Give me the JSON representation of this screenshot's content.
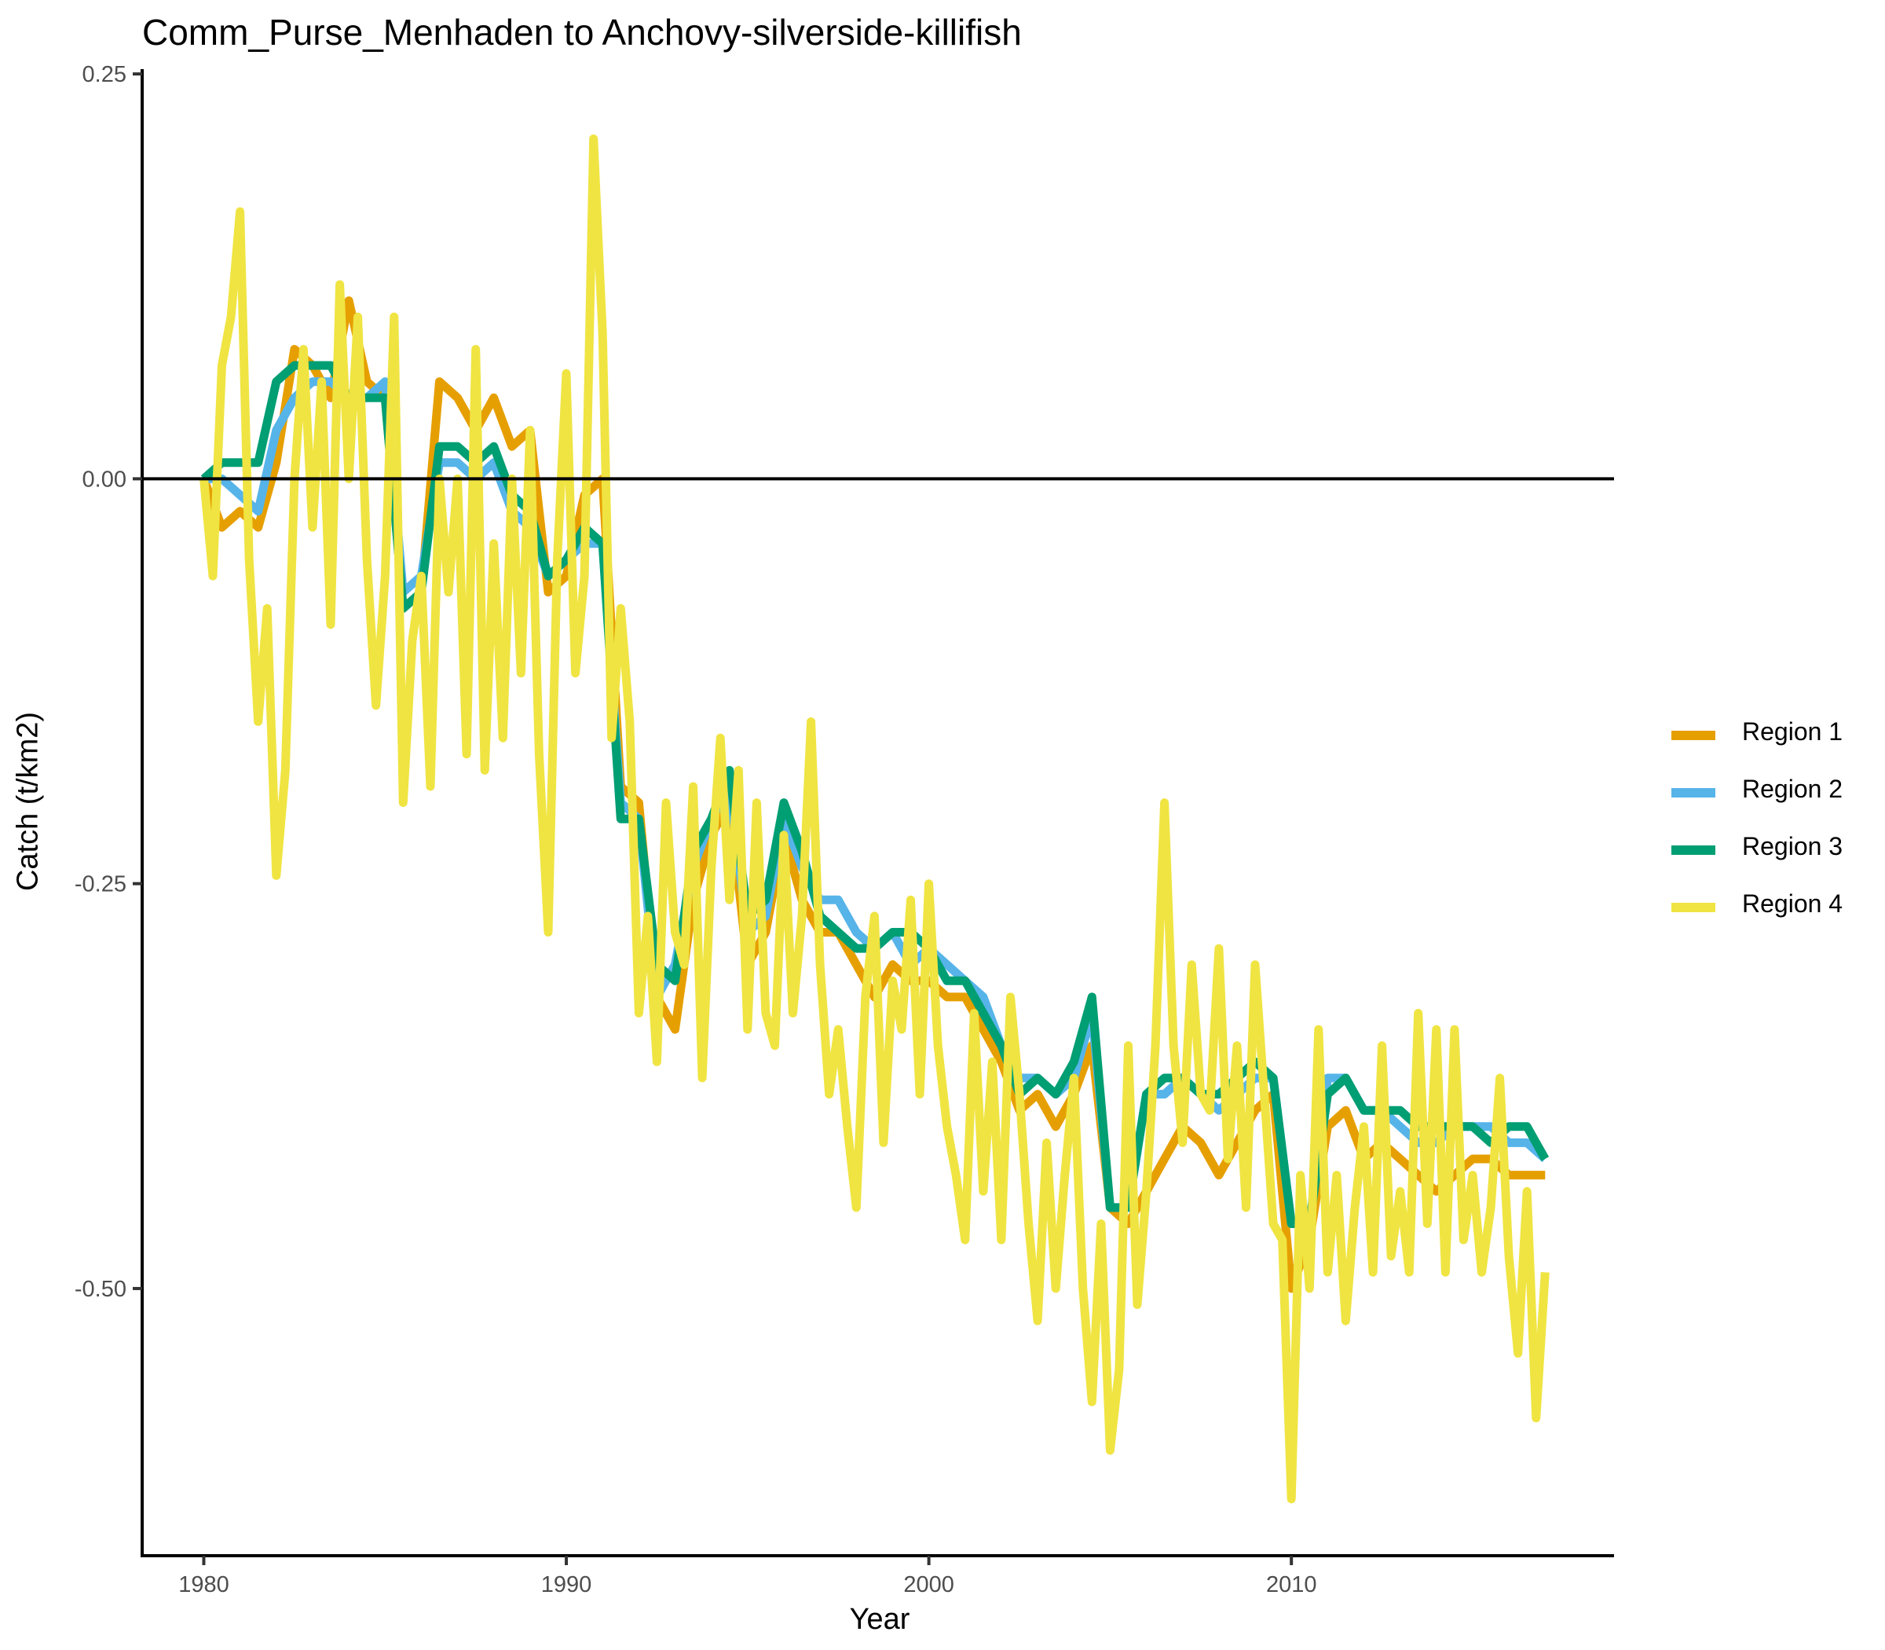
{
  "chart_data": {
    "type": "line",
    "title": "Comm_Purse_Menhaden to Anchovy-silverside-killifish",
    "xlabel": "Year",
    "ylabel": "Catch (t/km2)",
    "xlim": [
      1978.3,
      2018.9
    ],
    "ylim": [
      -0.665,
      0.252
    ],
    "x_ticks": [
      1980,
      1990,
      2000,
      2010
    ],
    "x_tick_labels": [
      "1980",
      "1990",
      "2000",
      "2010"
    ],
    "y_ticks": [
      0.25,
      0,
      -0.25,
      -0.5
    ],
    "y_tick_labels": [
      "0.25",
      "0.00",
      "-0.25",
      "-0.50"
    ],
    "reference_line_y": 0,
    "legend_position": "right",
    "grid": false,
    "series": [
      {
        "name": "Region 1",
        "color": "#E69F00",
        "x": [
          1980.0,
          1980.5,
          1981.0,
          1981.5,
          1982.0,
          1982.5,
          1983.0,
          1983.5,
          1984.0,
          1984.5,
          1985.0,
          1985.5,
          1986.0,
          1986.5,
          1987.0,
          1987.5,
          1988.0,
          1988.5,
          1989.0,
          1989.5,
          1990.0,
          1990.5,
          1991.0,
          1991.5,
          1992.0,
          1992.5,
          1993.0,
          1993.5,
          1994.0,
          1994.5,
          1995.0,
          1995.5,
          1996.0,
          1996.5,
          1997.0,
          1997.5,
          1998.0,
          1998.5,
          1999.0,
          1999.5,
          2000.0,
          2000.5,
          2001.0,
          2001.5,
          2002.0,
          2002.5,
          2003.0,
          2003.5,
          2004.0,
          2004.5,
          2005.0,
          2005.5,
          2006.0,
          2006.5,
          2007.0,
          2007.5,
          2008.0,
          2008.5,
          2009.0,
          2009.5,
          2010.0,
          2010.5,
          2011.0,
          2011.5,
          2012.0,
          2012.5,
          2013.0,
          2013.5,
          2014.0,
          2014.5,
          2015.0,
          2015.5,
          2016.0,
          2016.5,
          2017.0
        ],
        "values": [
          0.0,
          -0.03,
          -0.02,
          -0.03,
          0.01,
          0.08,
          0.07,
          0.05,
          0.11,
          0.06,
          0.05,
          -0.08,
          -0.07,
          0.06,
          0.05,
          0.03,
          0.05,
          0.02,
          0.03,
          -0.07,
          -0.06,
          -0.01,
          0.0,
          -0.19,
          -0.2,
          -0.32,
          -0.34,
          -0.26,
          -0.22,
          -0.2,
          -0.3,
          -0.28,
          -0.22,
          -0.26,
          -0.28,
          -0.28,
          -0.3,
          -0.32,
          -0.3,
          -0.31,
          -0.31,
          -0.32,
          -0.32,
          -0.34,
          -0.36,
          -0.39,
          -0.38,
          -0.4,
          -0.38,
          -0.35,
          -0.45,
          -0.46,
          -0.44,
          -0.42,
          -0.4,
          -0.41,
          -0.43,
          -0.41,
          -0.39,
          -0.38,
          -0.5,
          -0.47,
          -0.4,
          -0.39,
          -0.42,
          -0.41,
          -0.42,
          -0.43,
          -0.44,
          -0.43,
          -0.42,
          -0.42,
          -0.43,
          -0.43,
          -0.43
        ]
      },
      {
        "name": "Region 2",
        "color": "#56B4E9",
        "x": [
          1980.0,
          1980.5,
          1981.0,
          1981.5,
          1982.0,
          1982.5,
          1983.0,
          1983.5,
          1984.0,
          1984.5,
          1985.0,
          1985.5,
          1986.0,
          1986.5,
          1987.0,
          1987.5,
          1988.0,
          1988.5,
          1989.0,
          1989.5,
          1990.0,
          1990.5,
          1991.0,
          1991.5,
          1992.0,
          1992.5,
          1993.0,
          1993.5,
          1994.0,
          1994.5,
          1995.0,
          1995.5,
          1996.0,
          1996.5,
          1997.0,
          1997.5,
          1998.0,
          1998.5,
          1999.0,
          1999.5,
          2000.0,
          2000.5,
          2001.0,
          2001.5,
          2002.0,
          2002.5,
          2003.0,
          2003.5,
          2004.0,
          2004.5,
          2005.0,
          2005.5,
          2006.0,
          2006.5,
          2007.0,
          2007.5,
          2008.0,
          2008.5,
          2009.0,
          2009.5,
          2010.0,
          2010.5,
          2011.0,
          2011.5,
          2012.0,
          2012.5,
          2013.0,
          2013.5,
          2014.0,
          2014.5,
          2015.0,
          2015.5,
          2016.0,
          2016.5,
          2017.0
        ],
        "values": [
          0.0,
          0.0,
          -0.01,
          -0.02,
          0.03,
          0.05,
          0.06,
          0.06,
          0.05,
          0.05,
          0.06,
          -0.07,
          -0.06,
          0.01,
          0.01,
          0.0,
          0.01,
          -0.02,
          -0.03,
          -0.06,
          -0.05,
          -0.04,
          -0.04,
          -0.2,
          -0.21,
          -0.32,
          -0.3,
          -0.24,
          -0.21,
          -0.19,
          -0.28,
          -0.27,
          -0.21,
          -0.24,
          -0.26,
          -0.26,
          -0.28,
          -0.29,
          -0.28,
          -0.3,
          -0.29,
          -0.3,
          -0.31,
          -0.32,
          -0.35,
          -0.37,
          -0.37,
          -0.38,
          -0.37,
          -0.33,
          -0.45,
          -0.45,
          -0.38,
          -0.38,
          -0.37,
          -0.38,
          -0.39,
          -0.38,
          -0.37,
          -0.37,
          -0.46,
          -0.46,
          -0.37,
          -0.37,
          -0.39,
          -0.39,
          -0.4,
          -0.41,
          -0.41,
          -0.4,
          -0.4,
          -0.4,
          -0.41,
          -0.41,
          -0.42
        ]
      },
      {
        "name": "Region 3",
        "color": "#009E73",
        "x": [
          1980.0,
          1980.5,
          1981.0,
          1981.5,
          1982.0,
          1982.5,
          1983.0,
          1983.5,
          1984.0,
          1984.5,
          1985.0,
          1985.5,
          1986.0,
          1986.5,
          1987.0,
          1987.5,
          1988.0,
          1988.5,
          1989.0,
          1989.5,
          1990.0,
          1990.5,
          1991.0,
          1991.5,
          1992.0,
          1992.5,
          1993.0,
          1993.5,
          1994.0,
          1994.5,
          1995.0,
          1995.5,
          1996.0,
          1996.5,
          1997.0,
          1997.5,
          1998.0,
          1998.5,
          1999.0,
          1999.5,
          2000.0,
          2000.5,
          2001.0,
          2001.5,
          2002.0,
          2002.5,
          2003.0,
          2003.5,
          2004.0,
          2004.5,
          2005.0,
          2005.5,
          2006.0,
          2006.5,
          2007.0,
          2007.5,
          2008.0,
          2008.5,
          2009.0,
          2009.5,
          2010.0,
          2010.5,
          2011.0,
          2011.5,
          2012.0,
          2012.5,
          2013.0,
          2013.5,
          2014.0,
          2014.5,
          2015.0,
          2015.5,
          2016.0,
          2016.5,
          2017.0
        ],
        "values": [
          0.0,
          0.01,
          0.01,
          0.01,
          0.06,
          0.07,
          0.07,
          0.07,
          0.05,
          0.05,
          0.05,
          -0.08,
          -0.07,
          0.02,
          0.02,
          0.01,
          0.02,
          -0.01,
          -0.02,
          -0.06,
          -0.05,
          -0.03,
          -0.04,
          -0.21,
          -0.21,
          -0.3,
          -0.31,
          -0.23,
          -0.21,
          -0.18,
          -0.27,
          -0.26,
          -0.2,
          -0.23,
          -0.27,
          -0.28,
          -0.29,
          -0.29,
          -0.28,
          -0.28,
          -0.29,
          -0.31,
          -0.31,
          -0.33,
          -0.35,
          -0.38,
          -0.37,
          -0.38,
          -0.36,
          -0.32,
          -0.45,
          -0.45,
          -0.38,
          -0.37,
          -0.37,
          -0.38,
          -0.38,
          -0.37,
          -0.36,
          -0.37,
          -0.46,
          -0.46,
          -0.38,
          -0.37,
          -0.39,
          -0.39,
          -0.39,
          -0.4,
          -0.4,
          -0.4,
          -0.4,
          -0.41,
          -0.4,
          -0.4,
          -0.42
        ]
      },
      {
        "name": "Region 4",
        "color": "#F0E442",
        "x": [
          1980.0,
          1980.25,
          1980.5,
          1980.75,
          1981.0,
          1981.25,
          1981.5,
          1981.75,
          1982.0,
          1982.25,
          1982.5,
          1982.75,
          1983.0,
          1983.25,
          1983.5,
          1983.75,
          1984.0,
          1984.25,
          1984.5,
          1984.75,
          1985.0,
          1985.25,
          1985.5,
          1985.75,
          1986.0,
          1986.25,
          1986.5,
          1986.75,
          1987.0,
          1987.25,
          1987.5,
          1987.75,
          1988.0,
          1988.25,
          1988.5,
          1988.75,
          1989.0,
          1989.25,
          1989.5,
          1989.75,
          1990.0,
          1990.25,
          1990.5,
          1990.75,
          1991.0,
          1991.25,
          1991.5,
          1991.75,
          1992.0,
          1992.25,
          1992.5,
          1992.75,
          1993.0,
          1993.25,
          1993.5,
          1993.75,
          1994.0,
          1994.25,
          1994.5,
          1994.75,
          1995.0,
          1995.25,
          1995.5,
          1995.75,
          1996.0,
          1996.25,
          1996.5,
          1996.75,
          1997.0,
          1997.25,
          1997.5,
          1997.75,
          1998.0,
          1998.25,
          1998.5,
          1998.75,
          1999.0,
          1999.25,
          1999.5,
          1999.75,
          2000.0,
          2000.25,
          2000.5,
          2000.75,
          2001.0,
          2001.25,
          2001.5,
          2001.75,
          2002.0,
          2002.25,
          2002.5,
          2002.75,
          2003.0,
          2003.25,
          2003.5,
          2003.75,
          2004.0,
          2004.25,
          2004.5,
          2004.75,
          2005.0,
          2005.25,
          2005.5,
          2005.75,
          2006.0,
          2006.25,
          2006.5,
          2006.75,
          2007.0,
          2007.25,
          2007.5,
          2007.75,
          2008.0,
          2008.25,
          2008.5,
          2008.75,
          2009.0,
          2009.25,
          2009.5,
          2009.75,
          2010.0,
          2010.25,
          2010.5,
          2010.75,
          2011.0,
          2011.25,
          2011.5,
          2011.75,
          2012.0,
          2012.25,
          2012.5,
          2012.75,
          2013.0,
          2013.25,
          2013.5,
          2013.75,
          2014.0,
          2014.25,
          2014.5,
          2014.75,
          2015.0,
          2015.25,
          2015.5,
          2015.75,
          2016.0,
          2016.25,
          2016.5,
          2016.75,
          2017.0
        ],
        "values": [
          0.0,
          -0.06,
          0.07,
          0.1,
          0.165,
          -0.05,
          -0.15,
          -0.08,
          -0.245,
          -0.18,
          0.0,
          0.08,
          -0.03,
          0.06,
          -0.09,
          0.12,
          0.0,
          0.1,
          -0.05,
          -0.14,
          -0.06,
          0.1,
          -0.2,
          -0.1,
          -0.06,
          -0.19,
          0.0,
          -0.07,
          0.0,
          -0.17,
          0.08,
          -0.18,
          -0.04,
          -0.16,
          0.0,
          -0.12,
          0.03,
          -0.17,
          -0.28,
          -0.05,
          0.065,
          -0.12,
          -0.06,
          0.21,
          0.09,
          -0.16,
          -0.08,
          -0.15,
          -0.33,
          -0.27,
          -0.36,
          -0.2,
          -0.28,
          -0.3,
          -0.19,
          -0.37,
          -0.24,
          -0.16,
          -0.26,
          -0.18,
          -0.34,
          -0.2,
          -0.33,
          -0.35,
          -0.22,
          -0.33,
          -0.27,
          -0.15,
          -0.3,
          -0.38,
          -0.34,
          -0.4,
          -0.45,
          -0.32,
          -0.27,
          -0.41,
          -0.31,
          -0.34,
          -0.26,
          -0.38,
          -0.25,
          -0.35,
          -0.4,
          -0.43,
          -0.47,
          -0.33,
          -0.44,
          -0.36,
          -0.47,
          -0.32,
          -0.38,
          -0.46,
          -0.52,
          -0.41,
          -0.5,
          -0.43,
          -0.37,
          -0.5,
          -0.57,
          -0.46,
          -0.6,
          -0.55,
          -0.35,
          -0.51,
          -0.44,
          -0.35,
          -0.2,
          -0.35,
          -0.41,
          -0.3,
          -0.38,
          -0.39,
          -0.29,
          -0.42,
          -0.35,
          -0.45,
          -0.3,
          -0.38,
          -0.46,
          -0.47,
          -0.63,
          -0.43,
          -0.5,
          -0.34,
          -0.49,
          -0.43,
          -0.52,
          -0.45,
          -0.4,
          -0.49,
          -0.35,
          -0.48,
          -0.44,
          -0.49,
          -0.33,
          -0.46,
          -0.34,
          -0.49,
          -0.34,
          -0.47,
          -0.43,
          -0.49,
          -0.45,
          -0.37,
          -0.48,
          -0.54,
          -0.44,
          -0.58,
          -0.49
        ]
      }
    ]
  }
}
